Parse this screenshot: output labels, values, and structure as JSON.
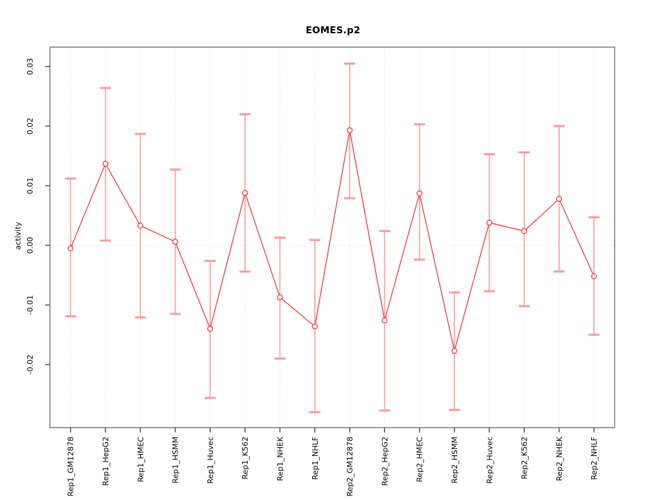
{
  "chart_data": {
    "type": "line",
    "title": "EOMES.p2",
    "xlabel": "",
    "ylabel": "activity",
    "legend_position": "none",
    "marker": "open-circle",
    "categories": [
      "Rep1_GM12878",
      "Rep1_HepG2",
      "Rep1_HMEC",
      "Rep1_HSMM",
      "Rep1_Huvec",
      "Rep1_K562",
      "Rep1_NHEK",
      "Rep1_NHLF",
      "Rep2_GM12878",
      "Rep2_HepG2",
      "Rep2_HMEC",
      "Rep2_HSMM",
      "Rep2_Huvec",
      "Rep2_K562",
      "Rep2_NHEK",
      "Rep2_NHLF"
    ],
    "series": [
      {
        "name": "activity",
        "values": [
          -0.0005,
          0.0137,
          0.0033,
          0.0006,
          -0.014,
          0.0088,
          -0.0087,
          -0.0136,
          0.0193,
          -0.0126,
          0.0087,
          -0.0177,
          0.0038,
          0.0024,
          0.0078,
          -0.0052
        ],
        "error_upper": [
          0.0112,
          0.0264,
          0.0187,
          0.0127,
          -0.0026,
          0.022,
          0.0013,
          0.0009,
          0.0305,
          0.0024,
          0.0203,
          -0.0079,
          0.0153,
          0.0156,
          0.02,
          0.0047
        ],
        "error_lower": [
          -0.0119,
          0.0008,
          -0.0121,
          -0.0115,
          -0.0256,
          -0.0044,
          -0.019,
          -0.028,
          0.0079,
          -0.0277,
          -0.0024,
          -0.0276,
          -0.0077,
          -0.0102,
          -0.0044,
          -0.015
        ]
      }
    ],
    "yticks": [
      {
        "value": 0.03,
        "label": "0.03"
      },
      {
        "value": 0.02,
        "label": "0.02"
      },
      {
        "value": 0.01,
        "label": "0.01"
      },
      {
        "value": 0.0,
        "label": "0.00"
      },
      {
        "value": -0.01,
        "label": "-0.01"
      },
      {
        "value": -0.02,
        "label": "-0.02"
      }
    ],
    "ylim": [
      -0.0306,
      0.0333
    ],
    "grid": {
      "vertical_dotted_per_category": true,
      "horizontal_dotted_at_zero": true
    },
    "colors": {
      "series": "#f23d3d",
      "error_bar": "#ff8d8d",
      "error_cap": "#ff9191",
      "grid": "#dcdcdc",
      "frame": "#858585",
      "tick": "#404040",
      "text": "#000000",
      "background": "#ffffff"
    }
  }
}
